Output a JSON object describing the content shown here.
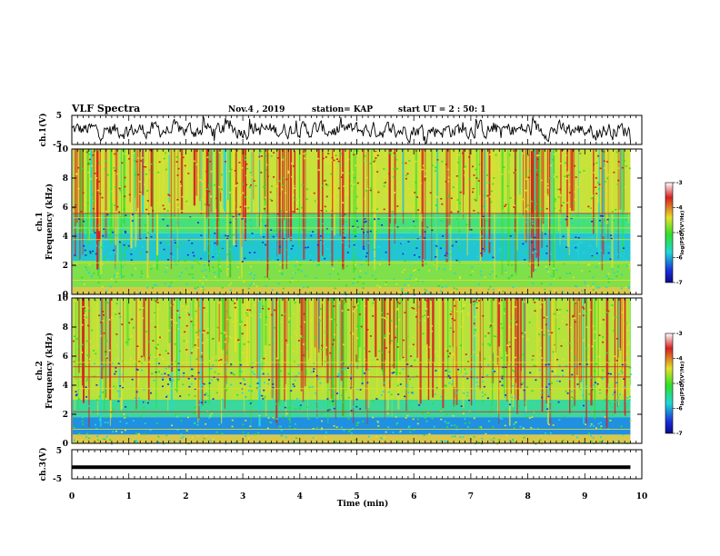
{
  "header": {
    "title": "VLF Spectra",
    "date": "Nov.4 , 2019",
    "station": "station= KAP",
    "start": "start UT = 2 : 50: 1"
  },
  "chart_data": [
    {
      "type": "line",
      "panel": "ch1-waveform",
      "ylabel": "ch.1(V)",
      "ylim": [
        -5,
        5
      ],
      "yticks": [
        "5",
        "-5"
      ],
      "xlim": [
        0,
        10
      ],
      "series": [
        {
          "values_note": "noise waveform, approx. -3 to +3 V"
        }
      ]
    },
    {
      "type": "heatmap",
      "panel": "ch1-spectrogram",
      "ylabel": "ch.1\nFrequency (kHz)",
      "ylim": [
        0,
        10
      ],
      "yticks": [
        "0",
        "2",
        "4",
        "6",
        "8",
        "10"
      ],
      "xlim": [
        0,
        10
      ],
      "bands_khz": [
        [
          2.3,
          5.6,
          "green-cyan-blue"
        ],
        [
          5.6,
          10,
          "yellow-green"
        ],
        [
          0.5,
          2.3,
          "green-yellow"
        ]
      ],
      "colorbar": {
        "label": "log(PSD)(V²/Hz)",
        "ticks": [
          "-3",
          "-4",
          "-5",
          "-6",
          "-7"
        ],
        "range": [
          -7,
          -3
        ]
      }
    },
    {
      "type": "heatmap",
      "panel": "ch2-spectrogram",
      "ylabel": "ch.2\nFrequency (kHz)",
      "ylim": [
        0,
        10
      ],
      "yticks": [
        "0",
        "2",
        "4",
        "6",
        "8",
        "10"
      ],
      "xlim": [
        0,
        10
      ],
      "bands_khz": [
        [
          0.6,
          3.0,
          "blue-cyan"
        ],
        [
          3.0,
          10,
          "yellow-green"
        ]
      ],
      "colorbar": {
        "label": "log(PSD)(V²/Hz)",
        "ticks": [
          "-3",
          "-4",
          "-5",
          "-6",
          "-7"
        ],
        "range": [
          -7,
          -3
        ]
      }
    },
    {
      "type": "line",
      "panel": "ch3-waveform",
      "ylabel": "ch.3(V)",
      "ylim": [
        -5,
        5
      ],
      "yticks": [
        "5",
        "-5"
      ],
      "xlim": [
        0,
        10
      ],
      "series": [
        {
          "constant": -1,
          "xend": 9.8
        }
      ]
    }
  ],
  "xaxis": {
    "label": "Time (min)",
    "ticks": [
      "0",
      "1",
      "2",
      "3",
      "4",
      "5",
      "6",
      "7",
      "8",
      "9",
      "10"
    ]
  },
  "colors": {
    "red": "#d62020",
    "yellow": "#e6e02a",
    "green": "#2ee02a",
    "cyan": "#20d8d8",
    "blue": "#1a30d8",
    "darkblue": "#0a0a8a"
  }
}
